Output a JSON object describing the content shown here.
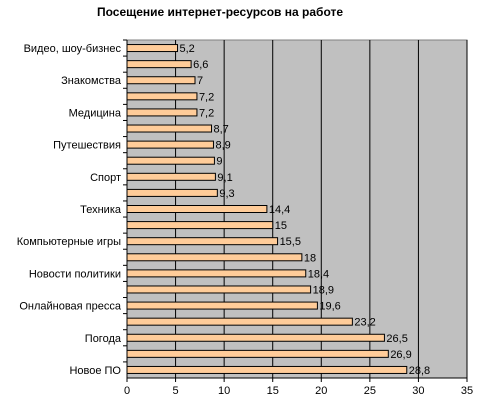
{
  "chart_data": {
    "type": "bar",
    "orientation": "horizontal",
    "title": "Посещение интернет-ресурсов на работе",
    "xlim": [
      0,
      35
    ],
    "x_ticks": [
      "0",
      "5",
      "10",
      "15",
      "20",
      "25",
      "30",
      "35"
    ],
    "grid": true,
    "legend": "none",
    "categories": [
      "Видео, шоу-бизнес",
      "",
      "Знакомства",
      "",
      "Медицина",
      "",
      "Путешествия",
      "",
      "Спорт",
      "",
      "Техника",
      "",
      "Компьютерные игры",
      "",
      "Новости политики",
      "",
      "Онлайновая пресса",
      "",
      "Погода",
      "",
      "Новое ПО"
    ],
    "values": [
      5.2,
      6.6,
      7,
      7.2,
      7.2,
      8.7,
      8.9,
      9,
      9.1,
      9.3,
      14.4,
      15,
      15.5,
      18,
      18.4,
      18.9,
      19.6,
      23.2,
      26.5,
      26.9,
      28.8
    ],
    "value_labels": [
      "5,2",
      "6,6",
      "7",
      "7,2",
      "7,2",
      "8,7",
      "8,9",
      "9",
      "9,1",
      "9,3",
      "14,4",
      "15",
      "15,5",
      "18",
      "18,4",
      "18,9",
      "19,6",
      "23,2",
      "26,5",
      "26,9",
      "28,8"
    ],
    "colors": {
      "bar_fill": "#FFCC99",
      "bar_stroke": "#000000",
      "plot_bg": "#C0C0C0",
      "grid": "#000000"
    }
  }
}
